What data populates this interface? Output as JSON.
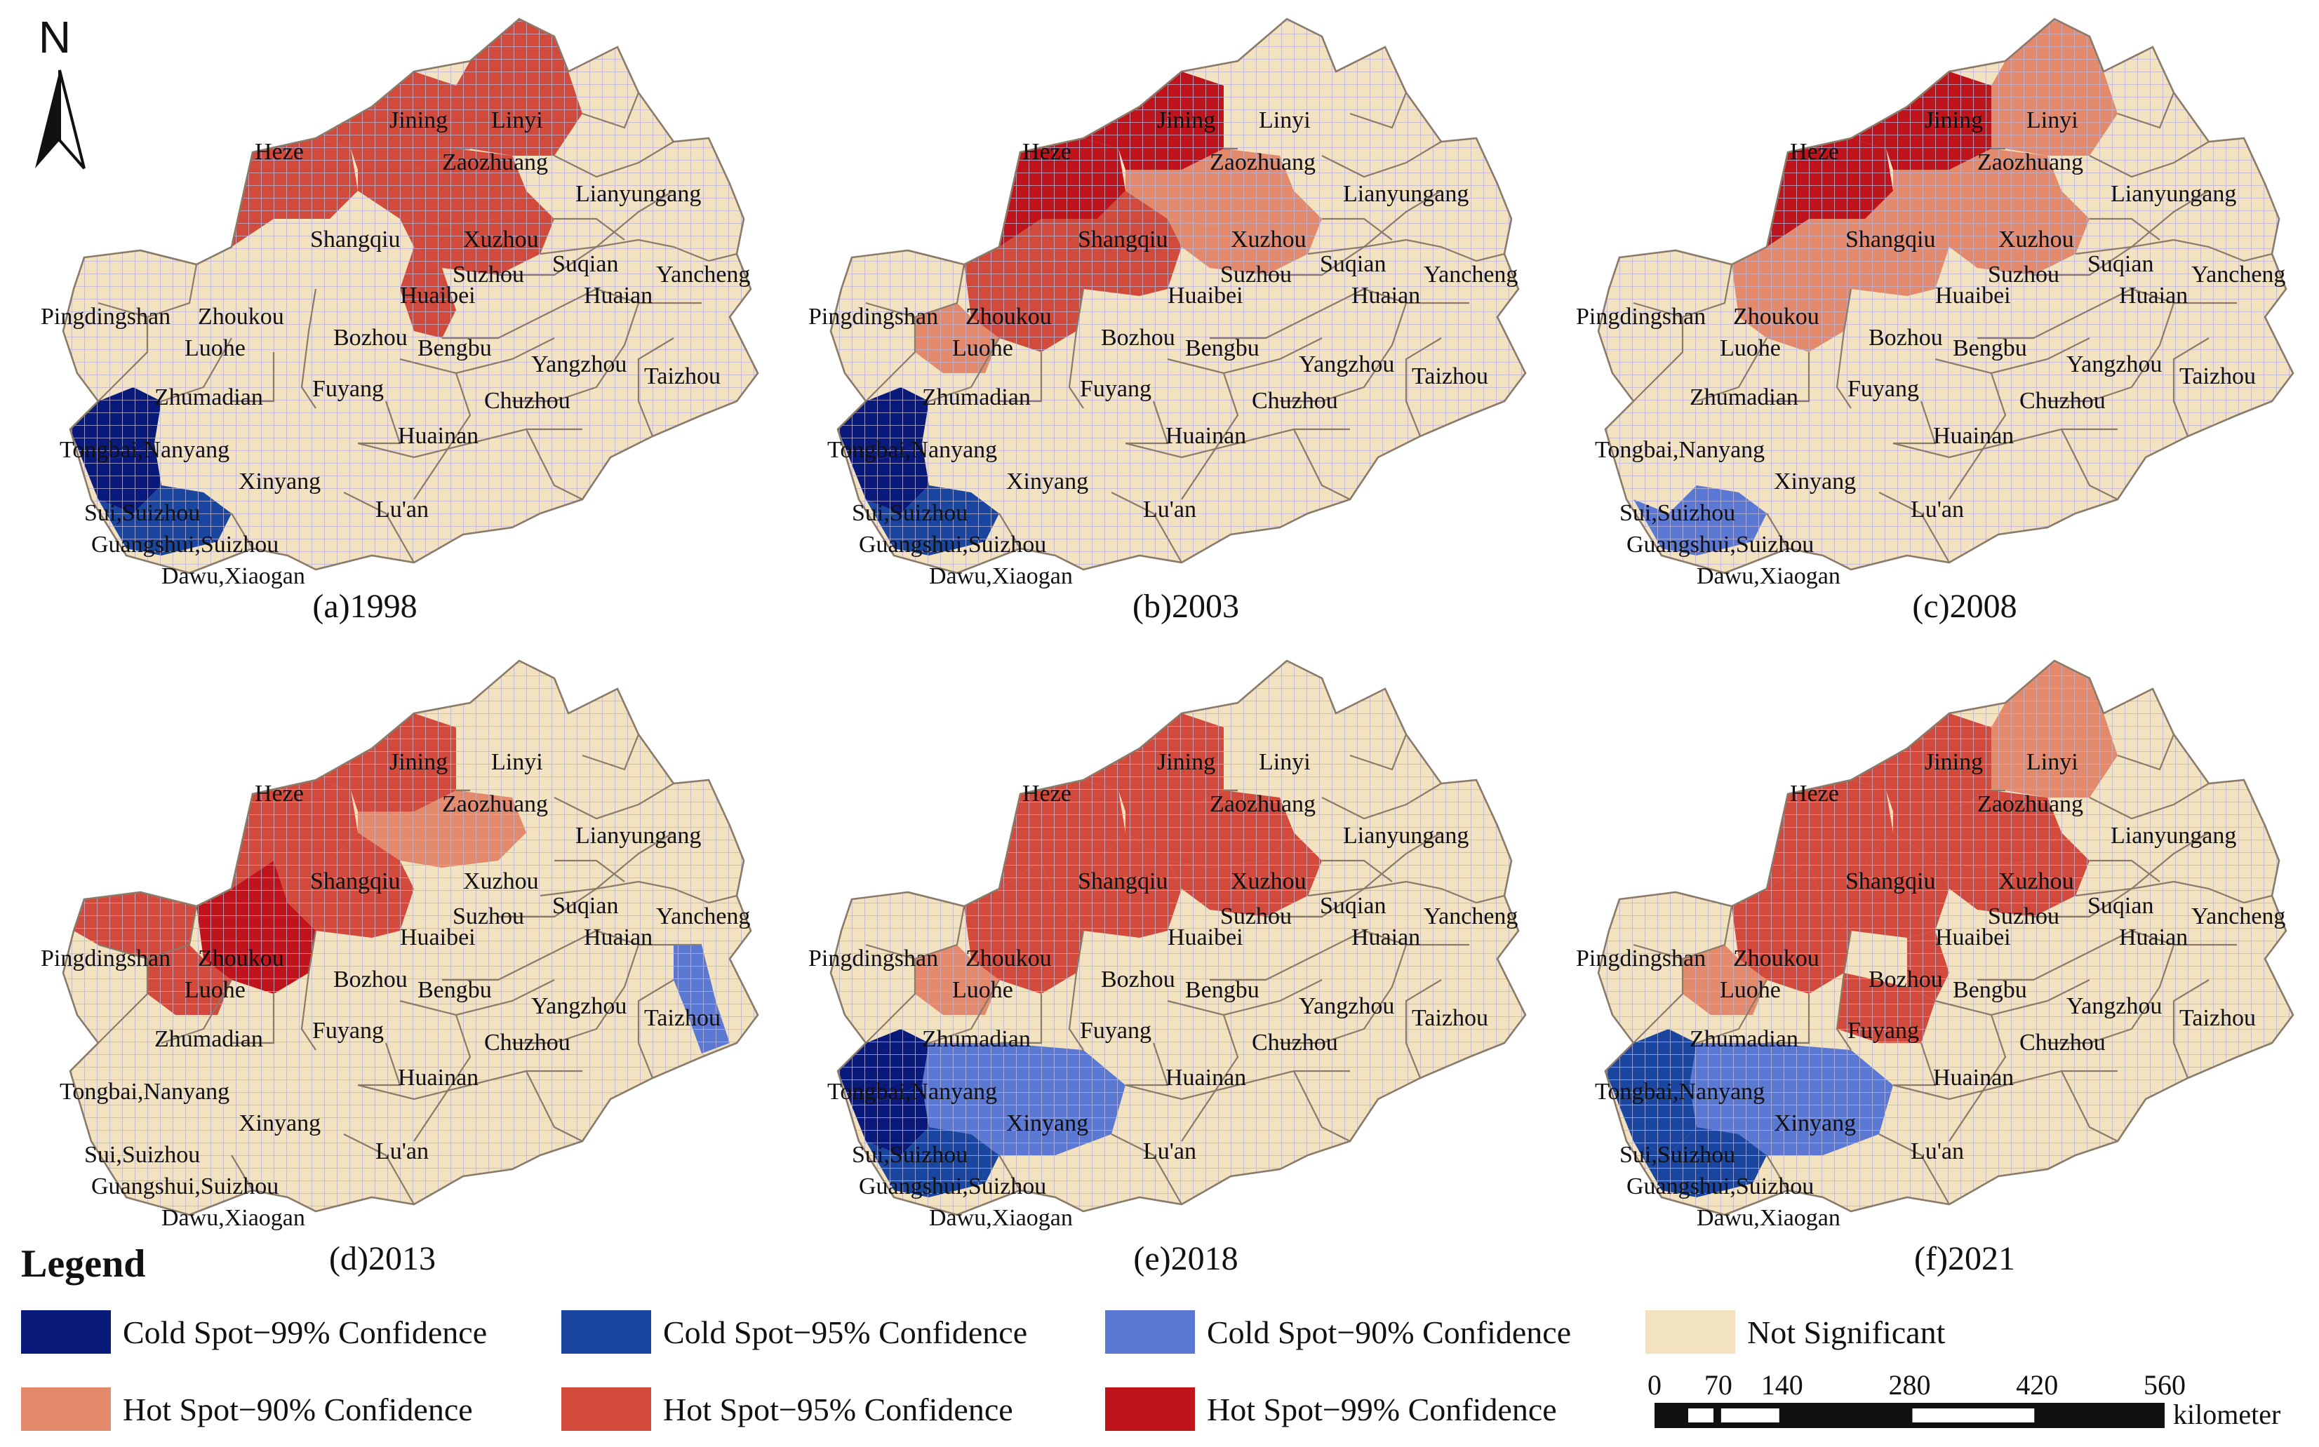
{
  "north_label": "N",
  "colors": {
    "cold99": "#0a1a7a",
    "cold95": "#1a46a0",
    "cold90": "#5b78d2",
    "ns": "#f3e2c0",
    "hot90": "#e38a6c",
    "hot95": "#d24a3c",
    "hot99": "#c0141c",
    "boundary": "#8a7a6a",
    "grid": "#b9b3d8"
  },
  "panels": [
    {
      "caption": "(a)1998",
      "hot99": [],
      "hot95": [
        "heze",
        "jining",
        "linyi",
        "zaozhuang",
        "xuzhou",
        "suzhou_ah"
      ],
      "hot90": [],
      "cold99": [
        "tongbai_nanyang",
        "sui_suizhou"
      ],
      "cold95": [
        "guangshui_suizhou"
      ],
      "cold90": []
    },
    {
      "caption": "(b)2003",
      "hot99": [
        "heze",
        "jining"
      ],
      "hot95": [
        "shangqiu",
        "zhoukou"
      ],
      "hot90": [
        "zaozhuang",
        "xuzhou",
        "luohe"
      ],
      "cold99": [
        "tongbai_nanyang",
        "sui_suizhou"
      ],
      "cold95": [
        "guangshui_suizhou"
      ],
      "cold90": []
    },
    {
      "caption": "(c)2008",
      "hot99": [
        "heze",
        "jining"
      ],
      "hot95": [],
      "hot90": [
        "linyi",
        "zaozhuang",
        "shangqiu",
        "zhoukou",
        "xuzhou"
      ],
      "cold99": [],
      "cold95": [],
      "cold90": [
        "guangshui_suizhou"
      ]
    },
    {
      "caption": "(d)2013",
      "hot99": [
        "zhoukou"
      ],
      "hot95": [
        "heze",
        "jining",
        "shangqiu",
        "pingdingshan",
        "luohe"
      ],
      "hot90": [
        "zaozhuang"
      ],
      "cold99": [],
      "cold95": [],
      "cold90": [
        "taizhou"
      ]
    },
    {
      "caption": "(e)2018",
      "hot99": [],
      "hot95": [
        "heze",
        "jining",
        "zaozhuang",
        "shangqiu",
        "zhoukou",
        "xuzhou"
      ],
      "hot90": [
        "luohe"
      ],
      "cold99": [
        "tongbai_nanyang",
        "sui_suizhou"
      ],
      "cold95": [
        "guangshui_suizhou"
      ],
      "cold90": [
        "xinyang"
      ]
    },
    {
      "caption": "(f)2021",
      "hot99": [],
      "hot95": [
        "heze",
        "jining",
        "zaozhuang",
        "shangqiu",
        "zhoukou",
        "xuzhou",
        "huaibei",
        "bozhou"
      ],
      "hot90": [
        "luohe",
        "linyi"
      ],
      "cold99": [],
      "cold95": [
        "tongbai_nanyang",
        "sui_suizhou",
        "guangshui_suizhou"
      ],
      "cold90": [
        "xinyang"
      ]
    }
  ],
  "city_labels": {
    "heze": "Heze",
    "jining": "Jining",
    "linyi": "Linyi",
    "zaozhuang": "Zaozhuang",
    "lianyungang": "Lianyungang",
    "shangqiu": "Shangqiu",
    "xuzhou": "Xuzhou",
    "suzhou_ah": "Suzhou",
    "suqian": "Suqian",
    "huaibei": "Huaibei",
    "yancheng": "Yancheng",
    "huaian": "Huaian",
    "pingdingshan": "Pingdingshan",
    "zhoukou": "Zhoukou",
    "luohe": "Luohe",
    "bozhou": "Bozhou",
    "bengbu": "Bengbu",
    "yangzhou": "Yangzhou",
    "taizhou": "Taizhou",
    "zhumadian": "Zhumadian",
    "fuyang": "Fuyang",
    "chuzhou": "Chuzhou",
    "huainan": "Huainan",
    "tongbai_nanyang": "Tongbai,Nanyang",
    "xinyang": "Xinyang",
    "sui_suizhou": "Sui,Suizhou",
    "luan": "Lu'an",
    "guangshui_suizhou": "Guangshui,Suizhou",
    "dawu_xiaogan": "Dawu,Xiaogan"
  },
  "legend": {
    "title": "Legend",
    "items": [
      {
        "key": "cold99",
        "label": "Cold Spot−99% Confidence"
      },
      {
        "key": "cold95",
        "label": "Cold Spot−95% Confidence"
      },
      {
        "key": "cold90",
        "label": "Cold Spot−90% Confidence"
      },
      {
        "key": "ns",
        "label": "Not Significant"
      },
      {
        "key": "hot90",
        "label": "Hot Spot−90% Confidence"
      },
      {
        "key": "hot95",
        "label": "Hot Spot−95% Confidence"
      },
      {
        "key": "hot99",
        "label": "Hot Spot−99% Confidence"
      }
    ]
  },
  "scale_bar": {
    "ticks": [
      "0",
      "70",
      "140",
      "280",
      "420",
      "560"
    ],
    "tick_values": [
      0,
      70,
      140,
      280,
      420,
      560
    ],
    "unit": "kilometer"
  }
}
